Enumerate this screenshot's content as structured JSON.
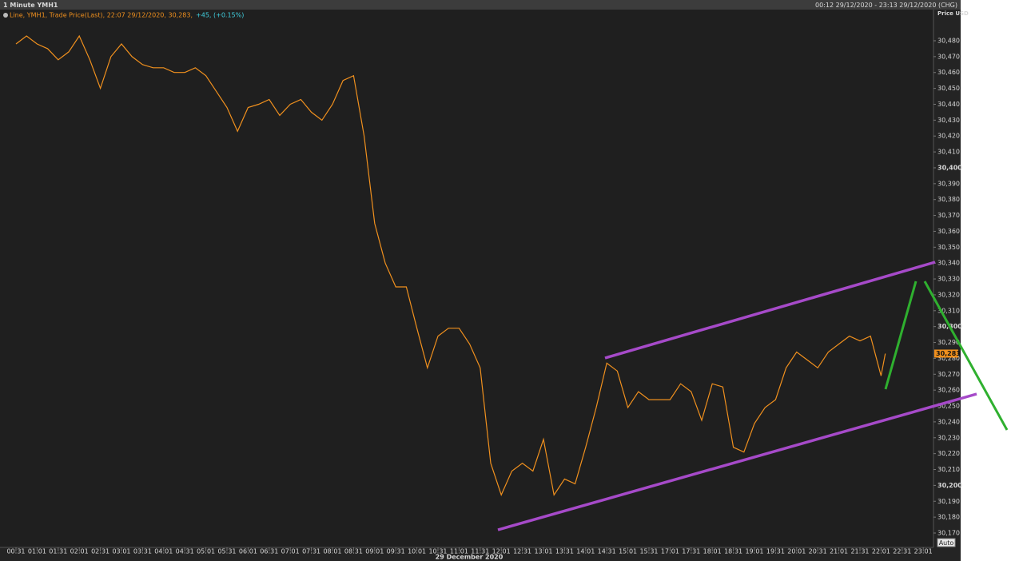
{
  "header": {
    "title": "1 Minute YMH1",
    "range": "00:12 29/12/2020 - 23:13 29/12/2020 (CHG)"
  },
  "chart_data": {
    "type": "line",
    "legend_main": "Line, YMH1, Trade Price(Last), 22:07 29/12/2020, 30,283,",
    "legend_change": "+45, (+0.15%)",
    "y_axis_title": "Price USD",
    "last_price_label": "30,283",
    "date_label": "29 December 2020",
    "auto_button": "Auto",
    "xticks": [
      "00:31",
      "01:01",
      "01:31",
      "02:01",
      "02:31",
      "03:01",
      "03:31",
      "04:01",
      "04:31",
      "05:01",
      "05:31",
      "06:01",
      "06:31",
      "07:01",
      "07:31",
      "08:01",
      "08:31",
      "09:01",
      "09:31",
      "10:01",
      "10:31",
      "11:01",
      "11:31",
      "12:01",
      "12:31",
      "13:01",
      "13:31",
      "14:01",
      "14:31",
      "15:01",
      "15:31",
      "17:01",
      "17:31",
      "18:01",
      "18:31",
      "19:01",
      "19:31",
      "20:01",
      "20:31",
      "21:01",
      "21:31",
      "22:01",
      "22:31",
      "23:01"
    ],
    "x": [
      "00:31",
      "00:46",
      "01:01",
      "01:16",
      "01:31",
      "01:46",
      "02:01",
      "02:16",
      "02:31",
      "02:46",
      "03:01",
      "03:16",
      "03:31",
      "03:46",
      "04:01",
      "04:16",
      "04:31",
      "04:46",
      "05:01",
      "05:16",
      "05:31",
      "05:46",
      "06:01",
      "06:16",
      "06:31",
      "06:46",
      "07:01",
      "07:16",
      "07:31",
      "07:46",
      "08:01",
      "08:16",
      "08:31",
      "08:46",
      "09:01",
      "09:16",
      "09:31",
      "09:46",
      "10:01",
      "10:16",
      "10:31",
      "10:46",
      "11:01",
      "11:16",
      "11:31",
      "11:46",
      "12:01",
      "12:16",
      "12:31",
      "12:46",
      "13:01",
      "13:16",
      "13:31",
      "13:46",
      "14:01",
      "14:16",
      "14:31",
      "14:46",
      "15:01",
      "15:16",
      "15:31",
      "17:01",
      "17:16",
      "17:31",
      "17:46",
      "18:01",
      "18:16",
      "18:31",
      "18:46",
      "19:01",
      "19:16",
      "19:31",
      "19:46",
      "20:01",
      "20:16",
      "20:31",
      "20:46",
      "21:01",
      "21:16",
      "21:31",
      "21:46",
      "22:01",
      "22:07"
    ],
    "series": [
      {
        "name": "YMH1",
        "color": "#f0901e",
        "values": [
          30478,
          30483,
          30478,
          30475,
          30468,
          30473,
          30483,
          30468,
          30450,
          30470,
          30478,
          30470,
          30465,
          30463,
          30463,
          30460,
          30460,
          30463,
          30458,
          30448,
          30438,
          30423,
          30438,
          30440,
          30443,
          30433,
          30440,
          30443,
          30435,
          30430,
          30440,
          30455,
          30458,
          30420,
          30365,
          30340,
          30325,
          30325,
          30299,
          30274,
          30294,
          30299,
          30299,
          30289,
          30274,
          30214,
          30194,
          30209,
          30214,
          30209,
          30229,
          30194,
          30204,
          30201,
          30224,
          30249,
          30277,
          30272,
          30249,
          30259,
          30254,
          30254,
          30264,
          30259,
          30241,
          30264,
          30262,
          30224,
          30221,
          30239,
          30249,
          30254,
          30274,
          30284,
          30279,
          30274,
          30284,
          30289,
          30294,
          30291,
          30294,
          30269,
          30283
        ]
      }
    ],
    "ylim": [
      30165,
      30489
    ],
    "yticks": [
      {
        "value": 30170,
        "label": "30,170"
      },
      {
        "value": 30180,
        "label": "30,180"
      },
      {
        "value": 30190,
        "label": "30,190"
      },
      {
        "value": 30200,
        "label": "30,200"
      },
      {
        "value": 30210,
        "label": "30,210"
      },
      {
        "value": 30220,
        "label": "30,220"
      },
      {
        "value": 30230,
        "label": "30,230"
      },
      {
        "value": 30240,
        "label": "30,240"
      },
      {
        "value": 30250,
        "label": "30,250"
      },
      {
        "value": 30260,
        "label": "30,260"
      },
      {
        "value": 30270,
        "label": "30,270"
      },
      {
        "value": 30280,
        "label": "30,280"
      },
      {
        "value": 30290,
        "label": "30,290"
      },
      {
        "value": 30300,
        "label": "30,300"
      },
      {
        "value": 30310,
        "label": "30,310"
      },
      {
        "value": 30320,
        "label": "30,320"
      },
      {
        "value": 30330,
        "label": "30,330"
      },
      {
        "value": 30340,
        "label": "30,340"
      },
      {
        "value": 30350,
        "label": "30,350"
      },
      {
        "value": 30360,
        "label": "30,360"
      },
      {
        "value": 30370,
        "label": "30,370"
      },
      {
        "value": 30380,
        "label": "30,380"
      },
      {
        "value": 30390,
        "label": "30,390"
      },
      {
        "value": 30400,
        "label": "30,400"
      },
      {
        "value": 30410,
        "label": "30,410"
      },
      {
        "value": 30420,
        "label": "30,420"
      },
      {
        "value": 30430,
        "label": "30,430"
      },
      {
        "value": 30440,
        "label": "30,440"
      },
      {
        "value": 30450,
        "label": "30,450"
      },
      {
        "value": 30460,
        "label": "30,460"
      },
      {
        "value": 30470,
        "label": "30,470"
      },
      {
        "value": 30480,
        "label": "30,480"
      }
    ],
    "grid": false
  }
}
